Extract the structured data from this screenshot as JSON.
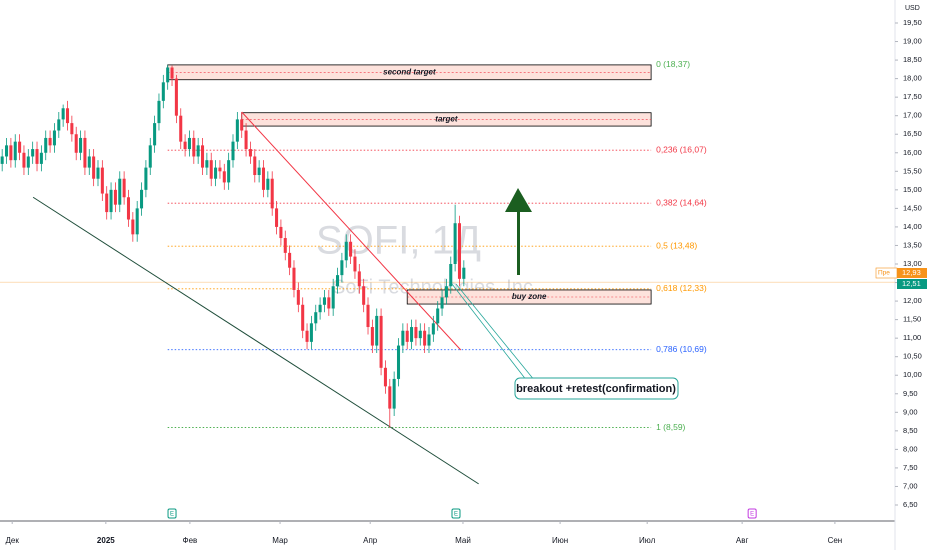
{
  "chart_data": {
    "type": "candlestick",
    "currency": "USD",
    "watermark": {
      "title": "SOFI, 1Д",
      "subtitle": "SoFi Technologies, Inc"
    },
    "up_color": "#089981",
    "down_color": "#f23645",
    "candles": [
      [
        15.7,
        16.1,
        15.5,
        15.9
      ],
      [
        15.9,
        16.4,
        15.7,
        16.2
      ],
      [
        16.2,
        16.4,
        15.6,
        15.8
      ],
      [
        15.8,
        16.5,
        15.6,
        16.3
      ],
      [
        16.3,
        16.5,
        15.8,
        16.0
      ],
      [
        16.0,
        16.2,
        15.4,
        15.6
      ],
      [
        15.6,
        16.1,
        15.4,
        15.9
      ],
      [
        15.9,
        16.3,
        15.7,
        16.1
      ],
      [
        16.1,
        16.3,
        15.5,
        15.7
      ],
      [
        15.7,
        16.2,
        15.5,
        16.0
      ],
      [
        16.0,
        16.6,
        15.8,
        16.4
      ],
      [
        16.4,
        16.6,
        16.0,
        16.2
      ],
      [
        16.2,
        16.8,
        16.0,
        16.6
      ],
      [
        16.6,
        17.1,
        16.4,
        16.9
      ],
      [
        16.9,
        17.3,
        16.7,
        17.2
      ],
      [
        17.2,
        17.4,
        16.6,
        16.8
      ],
      [
        16.8,
        17.0,
        16.3,
        16.5
      ],
      [
        16.5,
        16.7,
        15.8,
        16.0
      ],
      [
        16.0,
        16.6,
        15.8,
        16.4
      ],
      [
        16.4,
        16.6,
        15.4,
        15.6
      ],
      [
        15.6,
        16.1,
        15.4,
        15.9
      ],
      [
        15.9,
        16.1,
        15.1,
        15.3
      ],
      [
        15.3,
        15.8,
        15.1,
        15.6
      ],
      [
        15.6,
        15.8,
        14.7,
        14.9
      ],
      [
        14.9,
        15.1,
        14.2,
        14.4
      ],
      [
        14.4,
        15.2,
        14.2,
        15.0
      ],
      [
        15.0,
        15.2,
        14.4,
        14.6
      ],
      [
        14.6,
        15.5,
        14.4,
        15.3
      ],
      [
        15.3,
        15.5,
        14.6,
        14.8
      ],
      [
        14.8,
        15.0,
        14.0,
        14.2
      ],
      [
        14.2,
        14.4,
        13.6,
        13.8
      ],
      [
        13.8,
        14.7,
        13.6,
        14.5
      ],
      [
        14.5,
        15.2,
        14.3,
        15.0
      ],
      [
        15.0,
        15.8,
        14.8,
        15.6
      ],
      [
        15.6,
        16.4,
        15.4,
        16.2
      ],
      [
        16.2,
        17.0,
        16.0,
        16.8
      ],
      [
        16.8,
        17.6,
        16.6,
        17.4
      ],
      [
        17.4,
        18.1,
        17.2,
        17.9
      ],
      [
        17.9,
        18.37,
        17.7,
        18.3
      ],
      [
        18.3,
        18.35,
        17.8,
        18.0
      ],
      [
        18.0,
        18.1,
        16.8,
        17.0
      ],
      [
        17.0,
        17.2,
        16.1,
        16.3
      ],
      [
        16.3,
        16.5,
        15.9,
        16.1
      ],
      [
        16.1,
        16.6,
        15.9,
        16.4
      ],
      [
        16.4,
        16.6,
        15.7,
        15.9
      ],
      [
        15.9,
        16.4,
        15.7,
        16.2
      ],
      [
        16.2,
        16.4,
        15.4,
        15.6
      ],
      [
        15.6,
        16.0,
        15.4,
        15.8
      ],
      [
        15.8,
        16.0,
        15.1,
        15.3
      ],
      [
        15.3,
        15.8,
        15.1,
        15.6
      ],
      [
        15.6,
        15.8,
        15.3,
        15.5
      ],
      [
        15.5,
        15.7,
        15.0,
        15.2
      ],
      [
        15.2,
        16.0,
        15.0,
        15.8
      ],
      [
        15.8,
        16.5,
        15.6,
        16.3
      ],
      [
        16.3,
        17.1,
        16.1,
        16.9
      ],
      [
        16.9,
        17.1,
        16.4,
        16.6
      ],
      [
        16.6,
        16.8,
        15.9,
        16.1
      ],
      [
        16.1,
        16.3,
        15.7,
        15.9
      ],
      [
        15.9,
        16.1,
        15.2,
        15.4
      ],
      [
        15.4,
        15.8,
        15.2,
        15.6
      ],
      [
        15.6,
        15.8,
        14.8,
        15.0
      ],
      [
        15.0,
        15.5,
        14.8,
        15.3
      ],
      [
        15.3,
        15.5,
        14.3,
        14.5
      ],
      [
        14.5,
        14.7,
        13.8,
        14.0
      ],
      [
        14.0,
        14.2,
        13.5,
        13.7
      ],
      [
        13.7,
        13.9,
        13.1,
        13.3
      ],
      [
        13.3,
        13.5,
        12.7,
        12.9
      ],
      [
        12.9,
        13.1,
        12.1,
        12.3
      ],
      [
        12.3,
        12.5,
        11.7,
        11.9
      ],
      [
        11.9,
        12.1,
        11.0,
        11.2
      ],
      [
        11.2,
        11.4,
        10.7,
        10.9
      ],
      [
        10.9,
        11.6,
        10.7,
        11.4
      ],
      [
        11.4,
        11.9,
        11.2,
        11.7
      ],
      [
        11.7,
        12.1,
        11.5,
        11.9
      ],
      [
        11.9,
        12.3,
        11.7,
        12.1
      ],
      [
        12.1,
        12.3,
        11.6,
        11.8
      ],
      [
        11.8,
        12.6,
        11.6,
        12.4
      ],
      [
        12.4,
        12.9,
        12.2,
        12.7
      ],
      [
        12.7,
        13.3,
        12.5,
        13.1
      ],
      [
        13.1,
        13.8,
        12.9,
        13.6
      ],
      [
        13.6,
        13.8,
        13.0,
        13.2
      ],
      [
        13.2,
        13.4,
        12.6,
        12.8
      ],
      [
        12.8,
        13.0,
        12.2,
        12.4
      ],
      [
        12.4,
        12.6,
        11.7,
        11.9
      ],
      [
        11.9,
        12.1,
        11.1,
        11.3
      ],
      [
        11.3,
        11.5,
        10.6,
        10.8
      ],
      [
        10.8,
        11.8,
        10.6,
        11.6
      ],
      [
        11.6,
        11.8,
        10.0,
        10.2
      ],
      [
        10.2,
        10.4,
        9.5,
        9.7
      ],
      [
        9.7,
        9.9,
        8.59,
        9.1
      ],
      [
        9.1,
        10.1,
        8.9,
        9.9
      ],
      [
        9.9,
        11.0,
        9.7,
        10.8
      ],
      [
        10.8,
        11.4,
        10.6,
        11.2
      ],
      [
        11.2,
        11.4,
        10.7,
        10.9
      ],
      [
        10.9,
        11.5,
        10.7,
        11.3
      ],
      [
        11.3,
        11.5,
        10.8,
        11.0
      ],
      [
        11.0,
        11.4,
        10.8,
        11.2
      ],
      [
        11.2,
        11.4,
        10.6,
        10.8
      ],
      [
        10.8,
        11.3,
        10.6,
        11.1
      ],
      [
        11.1,
        11.6,
        10.9,
        11.4
      ],
      [
        11.4,
        12.0,
        11.2,
        11.8
      ],
      [
        11.8,
        12.3,
        11.6,
        12.1
      ],
      [
        12.1,
        12.6,
        11.9,
        12.4
      ],
      [
        12.4,
        13.2,
        12.2,
        13.0
      ],
      [
        13.0,
        14.6,
        12.8,
        14.1
      ],
      [
        14.1,
        14.3,
        12.4,
        12.6
      ],
      [
        12.6,
        13.1,
        12.4,
        12.9
      ]
    ],
    "xlim": [
      -0.5,
      205
    ],
    "xticks": [
      {
        "value": 2.3,
        "label": "Дек"
      },
      {
        "value": 23.8,
        "label": "2025"
      },
      {
        "value": 43.1,
        "label": "Фев"
      },
      {
        "value": 63.8,
        "label": "Мар"
      },
      {
        "value": 84.5,
        "label": "Апр"
      },
      {
        "value": 105.8,
        "label": "Май"
      },
      {
        "value": 128.1,
        "label": "Июн"
      },
      {
        "value": 148.1,
        "label": "Июл"
      },
      {
        "value": 169.9,
        "label": "Авг"
      },
      {
        "value": 191.2,
        "label": "Сен"
      }
    ],
    "ylim": [
      6.5,
      19.5
    ],
    "yticks": [
      {
        "value": 6.5,
        "label": "6,50"
      },
      {
        "value": 7,
        "label": "7,00"
      },
      {
        "value": 7.5,
        "label": "7,50"
      },
      {
        "value": 8,
        "label": "8,00"
      },
      {
        "value": 8.5,
        "label": "8,50"
      },
      {
        "value": 9,
        "label": "9,00"
      },
      {
        "value": 9.5,
        "label": "9,50"
      },
      {
        "value": 10,
        "label": "10,00"
      },
      {
        "value": 10.5,
        "label": "10,50"
      },
      {
        "value": 11,
        "label": "11,00"
      },
      {
        "value": 11.5,
        "label": "11,50"
      },
      {
        "value": 12,
        "label": "12,00"
      },
      {
        "value": 12.5,
        "label": "12,50"
      },
      {
        "value": 13,
        "label": "13,00"
      },
      {
        "value": 13.5,
        "label": "13,50"
      },
      {
        "value": 14,
        "label": "14,00"
      },
      {
        "value": 14.5,
        "label": "14,50"
      },
      {
        "value": 15,
        "label": "15,00"
      },
      {
        "value": 15.5,
        "label": "15,50"
      },
      {
        "value": 16,
        "label": "16,00"
      },
      {
        "value": 16.5,
        "label": "16,50"
      },
      {
        "value": 17,
        "label": "17,00"
      },
      {
        "value": 17.5,
        "label": "17,50"
      },
      {
        "value": 18,
        "label": "18,00"
      },
      {
        "value": 18.5,
        "label": "18,50"
      },
      {
        "value": 19,
        "label": "19,00"
      },
      {
        "value": 19.5,
        "label": "19,50"
      }
    ],
    "price_tags": [
      {
        "value": 12.93,
        "label": "12,93",
        "prefix": "Пре",
        "color": "#f7931a"
      },
      {
        "value": 12.51,
        "label": "12,51",
        "color": "#089981"
      }
    ],
    "fib_levels": [
      {
        "value": 18.37,
        "label": "0 (18,37)",
        "color": "#4caf50"
      },
      {
        "value": 16.07,
        "label": "0,236 (16,07)",
        "color": "#f23645"
      },
      {
        "value": 14.64,
        "label": "0,382 (14,64)",
        "color": "#f23645"
      },
      {
        "value": 13.48,
        "label": "0,5 (13,48)",
        "color": "#ff9800"
      },
      {
        "value": 12.33,
        "label": "0,618 (12,33)",
        "color": "#ff9800"
      },
      {
        "value": 10.69,
        "label": "0,786 (10,69)",
        "color": "#2962ff"
      },
      {
        "value": 8.59,
        "label": "1 (8,59)",
        "color": "#4caf50"
      }
    ],
    "zones": [
      {
        "label": "second target",
        "top": 18.37,
        "bottom": 17.97,
        "start": 38
      },
      {
        "label": "target",
        "top": 17.08,
        "bottom": 16.72,
        "start": 55
      },
      {
        "label": "buy zone",
        "top": 12.3,
        "bottom": 11.92,
        "start": 93
      }
    ],
    "trendlines": [
      {
        "x": [
          55,
          105.3
        ],
        "y": [
          17.1,
          10.68
        ],
        "color": "#f23645"
      },
      {
        "x": [
          7.1,
          109.4
        ],
        "y": [
          14.8,
          7.07
        ],
        "color": "#1e4d3a"
      }
    ],
    "annotation": "breakout +retest(confirmation)",
    "events": [
      {
        "index": 39,
        "label": "E",
        "color": "#089981"
      },
      {
        "index": 104.2,
        "label": "E",
        "color": "#089981"
      },
      {
        "index": 172.2,
        "label": "E",
        "color": "#c23ae0"
      }
    ]
  }
}
